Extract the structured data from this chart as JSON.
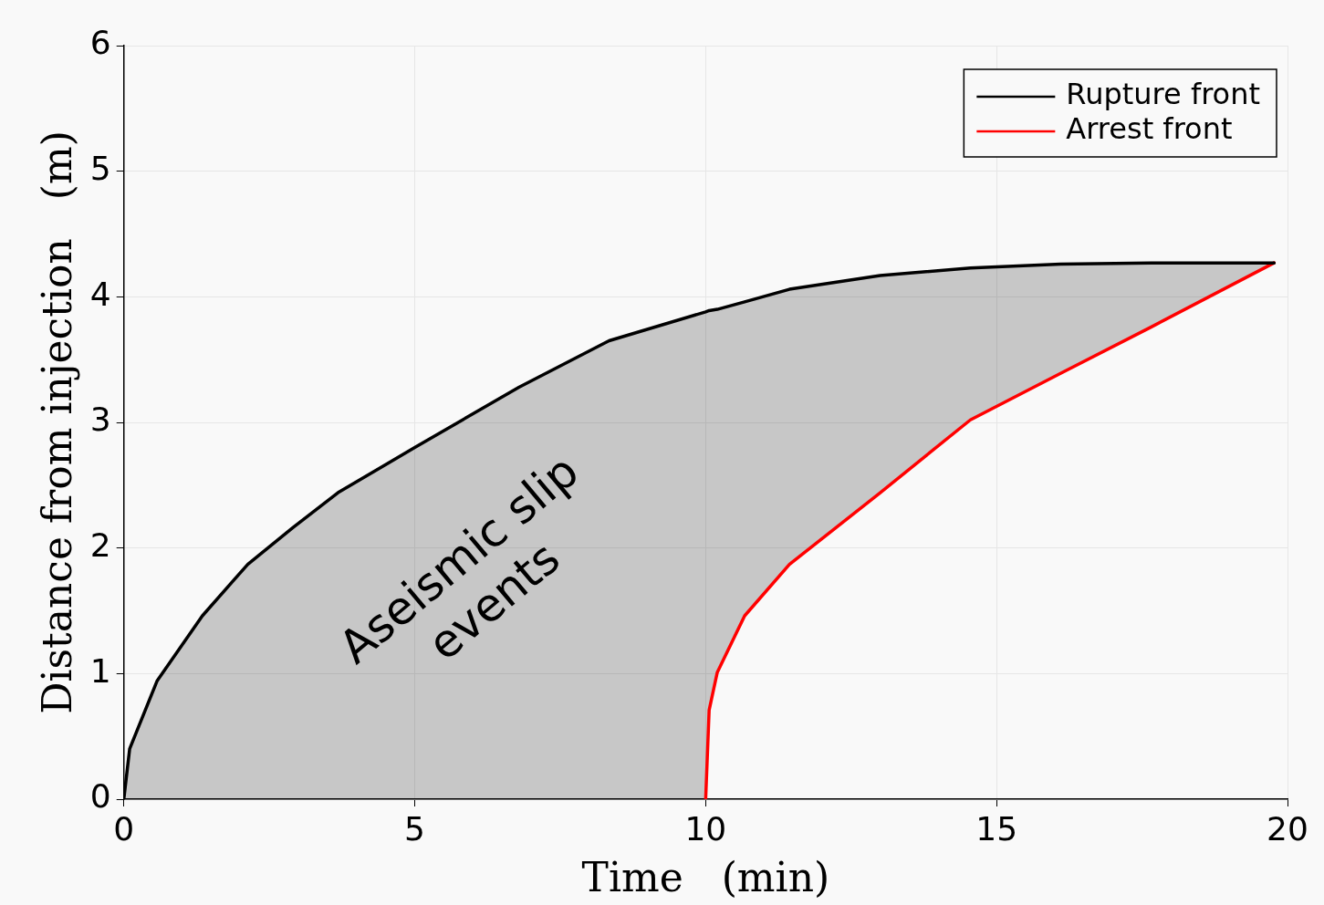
{
  "chart_data": {
    "type": "line",
    "xlabel": "Time   (min)",
    "ylabel": "Distance from injection   (m)",
    "xlim": [
      0,
      20
    ],
    "xticks": [
      0,
      5,
      10,
      15,
      20
    ],
    "ylim": [
      0,
      6
    ],
    "yticks": [
      0,
      1,
      2,
      3,
      4,
      5,
      6
    ],
    "grid": true,
    "legend": "top right",
    "marker": "none",
    "line_style": "solid",
    "series": [
      {
        "name": "Rupture front",
        "color": "#000000",
        "x": [
          0,
          0.1,
          0.57,
          1.35,
          2.13,
          2.9,
          3.68,
          5,
          6.79,
          8.34,
          10,
          10.06,
          10.2,
          10.67,
          11.44,
          13,
          14.55,
          16.1,
          17.66,
          19.77
        ],
        "values": [
          0,
          0.4,
          0.94,
          1.46,
          1.87,
          2.16,
          2.44,
          2.8,
          3.28,
          3.65,
          3.88,
          3.89,
          3.9,
          3.96,
          4.06,
          4.17,
          4.23,
          4.26,
          4.27,
          4.27
        ]
      },
      {
        "name": "Arrest front",
        "color": "#ff0000",
        "x": [
          10,
          10.06,
          10.2,
          10.67,
          11.44,
          13,
          14.55,
          16.1,
          17.66,
          19.77
        ],
        "values": [
          0,
          0.71,
          1.01,
          1.46,
          1.87,
          2.44,
          3.02,
          3.39,
          3.76,
          4.27
        ]
      }
    ],
    "annotations": [
      "Aseismic slip\nevents"
    ]
  }
}
